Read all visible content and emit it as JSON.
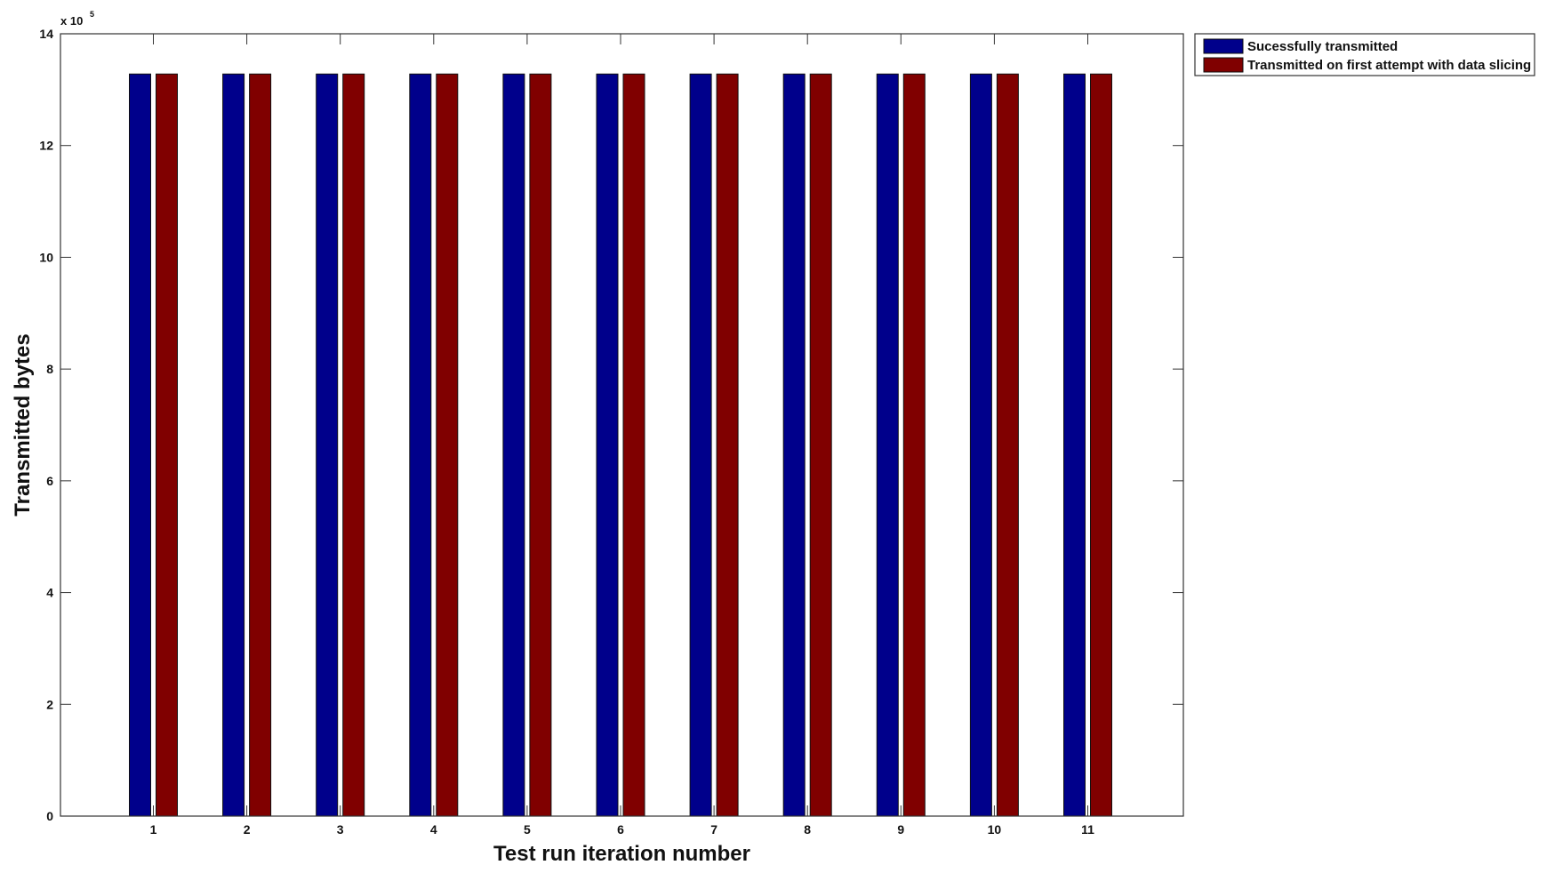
{
  "chart_data": {
    "type": "bar",
    "title": "",
    "xlabel": "Test run iteration number",
    "ylabel": "Transmitted bytes",
    "y_exponent_label": "x 10",
    "y_exponent_power": "5",
    "categories": [
      "1",
      "2",
      "3",
      "4",
      "5",
      "6",
      "7",
      "8",
      "9",
      "10",
      "11"
    ],
    "ylim": [
      0,
      14
    ],
    "y_ticks": [
      "0",
      "2",
      "4",
      "6",
      "8",
      "10",
      "12",
      "14"
    ],
    "y_scale": 100000,
    "grid": false,
    "legend_position": "outside-top-right",
    "series": [
      {
        "name": "Sucessfully transmitted",
        "color": "#00008B",
        "values": [
          13.28,
          13.28,
          13.28,
          13.28,
          13.28,
          13.28,
          13.28,
          13.28,
          13.28,
          13.28,
          13.28
        ]
      },
      {
        "name": "Transmitted on first attempt with data slicing",
        "color": "#800000",
        "values": [
          13.28,
          13.28,
          13.28,
          13.28,
          13.28,
          13.28,
          13.28,
          13.28,
          13.28,
          13.28,
          13.28
        ]
      }
    ]
  }
}
